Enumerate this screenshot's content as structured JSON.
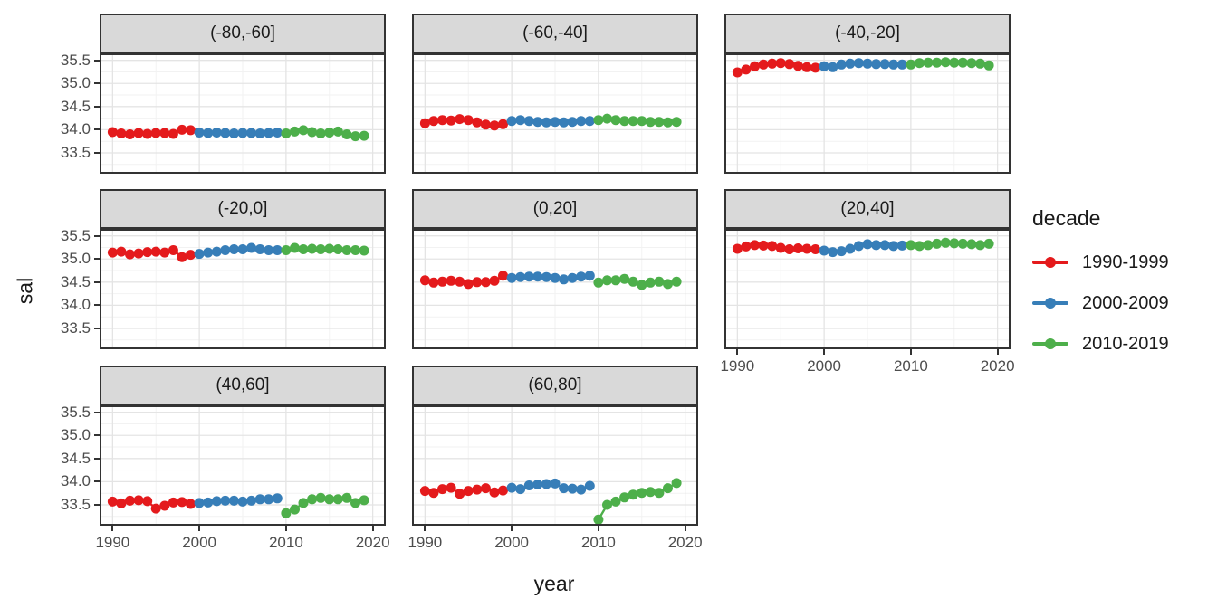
{
  "figure": {
    "x_axis_title": "year",
    "y_axis_title": "sal",
    "background_color": "#FFFFFF"
  },
  "legend": {
    "title": "decade",
    "entries": [
      {
        "label": "1990-1999",
        "color": "#E41A1C"
      },
      {
        "label": "2000-2009",
        "color": "#377EB8"
      },
      {
        "label": "2010-2019",
        "color": "#4DAF4A"
      }
    ]
  },
  "style_colors": {
    "strip_background": "#D9D9D9",
    "panel_border": "#333333",
    "grid_major": "#E4E4E4",
    "grid_minor": "#F2F2F2",
    "tick_text": "#4D4D4D"
  },
  "chart_data": {
    "type": "line",
    "title": "",
    "xlabel": "year",
    "ylabel": "sal",
    "legend_title": "decade",
    "legend_position": "right",
    "grid": true,
    "facet_layout": "3 columns x 3 rows, 8 panels",
    "x_ticks": [
      1990,
      2000,
      2010,
      2020
    ],
    "y_ticks": [
      33.5,
      34.0,
      34.5,
      35.0,
      35.5
    ],
    "x_minor_ticks": [
      1995,
      2005,
      2015
    ],
    "y_minor_ticks": [
      33.25,
      33.75,
      34.25,
      34.75,
      35.25
    ],
    "xlim": [
      1988.5,
      2021.5
    ],
    "ylim": [
      33.05,
      35.65
    ],
    "x": [
      1990,
      1991,
      1992,
      1993,
      1994,
      1995,
      1996,
      1997,
      1998,
      1999,
      2000,
      2001,
      2002,
      2003,
      2004,
      2005,
      2006,
      2007,
      2008,
      2009,
      2010,
      2011,
      2012,
      2013,
      2014,
      2015,
      2016,
      2017,
      2018,
      2019
    ],
    "series_split": [
      {
        "name": "1990-1999",
        "color": "#E41A1C",
        "index_range": [
          0,
          9
        ]
      },
      {
        "name": "2000-2009",
        "color": "#377EB8",
        "index_range": [
          10,
          19
        ]
      },
      {
        "name": "2010-2019",
        "color": "#4DAF4A",
        "index_range": [
          20,
          29
        ]
      }
    ],
    "facets": [
      {
        "label": "(-80,-60]",
        "row": 0,
        "col": 0,
        "sal": [
          33.95,
          33.92,
          33.9,
          33.93,
          33.91,
          33.93,
          33.93,
          33.91,
          34.0,
          33.99,
          33.94,
          33.93,
          33.94,
          33.93,
          33.92,
          33.93,
          33.93,
          33.92,
          33.93,
          33.94,
          33.92,
          33.96,
          33.99,
          33.95,
          33.92,
          33.94,
          33.96,
          33.9,
          33.86,
          33.87
        ]
      },
      {
        "label": "(-60,-40]",
        "row": 0,
        "col": 1,
        "sal": [
          34.14,
          34.19,
          34.21,
          34.2,
          34.23,
          34.21,
          34.16,
          34.11,
          34.09,
          34.12,
          34.19,
          34.21,
          34.19,
          34.17,
          34.16,
          34.17,
          34.16,
          34.17,
          34.19,
          34.19,
          34.21,
          34.24,
          34.21,
          34.19,
          34.19,
          34.19,
          34.17,
          34.17,
          34.16,
          34.17
        ]
      },
      {
        "label": "(-40,-20]",
        "row": 0,
        "col": 2,
        "sal": [
          35.24,
          35.3,
          35.37,
          35.41,
          35.43,
          35.44,
          35.42,
          35.38,
          35.35,
          35.34,
          35.37,
          35.35,
          35.41,
          35.43,
          35.44,
          35.43,
          35.42,
          35.42,
          35.41,
          35.41,
          35.41,
          35.44,
          35.45,
          35.45,
          35.46,
          35.45,
          35.45,
          35.44,
          35.43,
          35.39
        ]
      },
      {
        "label": "(-20,0]",
        "row": 1,
        "col": 0,
        "sal": [
          35.14,
          35.16,
          35.1,
          35.12,
          35.15,
          35.16,
          35.14,
          35.19,
          35.04,
          35.09,
          35.11,
          35.14,
          35.16,
          35.19,
          35.21,
          35.21,
          35.24,
          35.21,
          35.19,
          35.19,
          35.19,
          35.24,
          35.21,
          35.22,
          35.21,
          35.22,
          35.21,
          35.19,
          35.19,
          35.18
        ]
      },
      {
        "label": "(0,20]",
        "row": 1,
        "col": 1,
        "sal": [
          34.54,
          34.49,
          34.51,
          34.53,
          34.51,
          34.46,
          34.5,
          34.5,
          34.53,
          34.64,
          34.59,
          34.61,
          34.62,
          34.62,
          34.61,
          34.59,
          34.56,
          34.59,
          34.62,
          34.64,
          34.49,
          34.54,
          34.54,
          34.57,
          34.51,
          34.44,
          34.49,
          34.51,
          34.46,
          34.51
        ]
      },
      {
        "label": "(20,40]",
        "row": 1,
        "col": 2,
        "sal": [
          35.22,
          35.27,
          35.3,
          35.29,
          35.28,
          35.24,
          35.21,
          35.23,
          35.22,
          35.21,
          35.18,
          35.15,
          35.17,
          35.22,
          35.28,
          35.32,
          35.3,
          35.3,
          35.28,
          35.29,
          35.3,
          35.28,
          35.3,
          35.33,
          35.35,
          35.34,
          35.33,
          35.32,
          35.3,
          35.33
        ]
      },
      {
        "label": "(40,60]",
        "row": 2,
        "col": 0,
        "sal": [
          33.57,
          33.53,
          33.59,
          33.6,
          33.58,
          33.42,
          33.48,
          33.55,
          33.56,
          33.52,
          33.54,
          33.55,
          33.58,
          33.59,
          33.59,
          33.57,
          33.59,
          33.62,
          33.62,
          33.64,
          33.32,
          33.4,
          33.54,
          33.62,
          33.65,
          33.62,
          33.62,
          33.65,
          33.54,
          33.6
        ]
      },
      {
        "label": "(60,80]",
        "row": 2,
        "col": 1,
        "sal": [
          33.8,
          33.76,
          33.84,
          33.87,
          33.74,
          33.8,
          33.83,
          33.86,
          33.77,
          33.81,
          33.87,
          33.84,
          33.92,
          33.94,
          33.95,
          33.96,
          33.86,
          33.85,
          33.83,
          33.91,
          33.18,
          33.5,
          33.57,
          33.66,
          33.72,
          33.76,
          33.78,
          33.76,
          33.86,
          33.97
        ]
      }
    ]
  }
}
